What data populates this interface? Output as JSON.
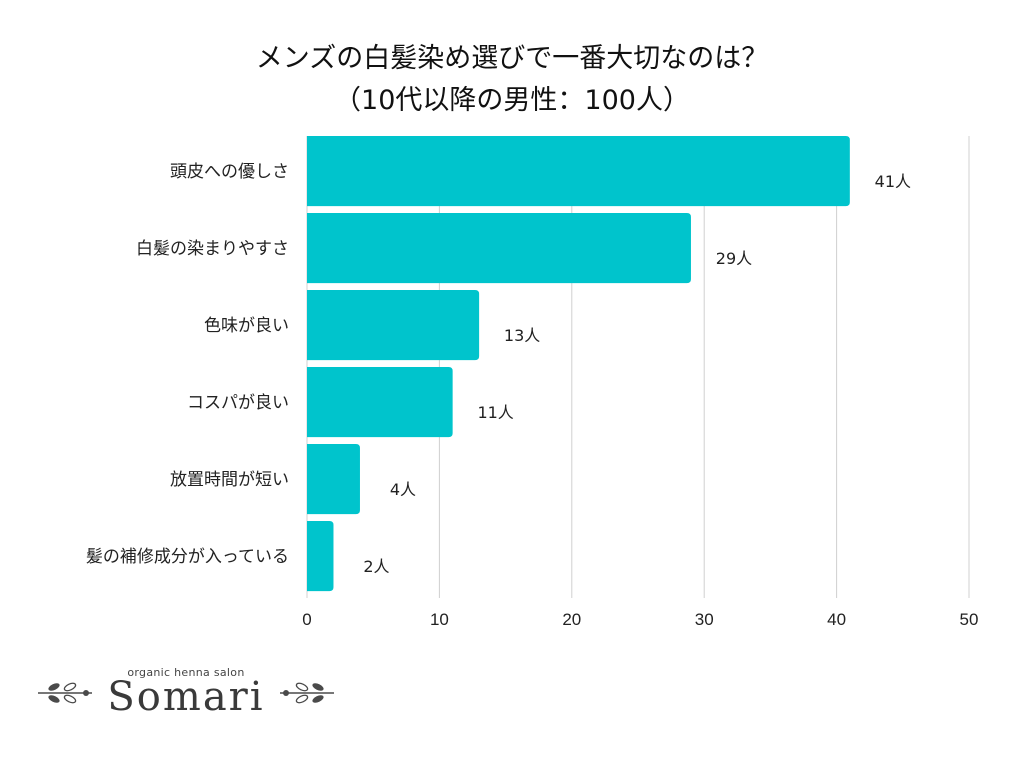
{
  "title": {
    "line1": "メンズの白髪染め選びで一番大切なのは？",
    "line2": "（10代以降の男性：100人）"
  },
  "chart_data": {
    "type": "bar",
    "orientation": "horizontal",
    "categories": [
      "頭皮への優しさ",
      "白髪の染まりやすさ",
      "色味が良い",
      "コスパが良い",
      "放置時間が短い",
      "髪の補修成分が入っている"
    ],
    "values": [
      41,
      29,
      13,
      11,
      4,
      2
    ],
    "value_labels": [
      "41人",
      "29人",
      "13人",
      "11人",
      "4人",
      "2人"
    ],
    "xlim": [
      0,
      50
    ],
    "xticks": [
      0,
      10,
      20,
      30,
      40,
      50
    ],
    "grid": true,
    "bar_color": "#00c4cc"
  },
  "logo": {
    "tagline": "organic henna salon",
    "name": "Somari"
  }
}
